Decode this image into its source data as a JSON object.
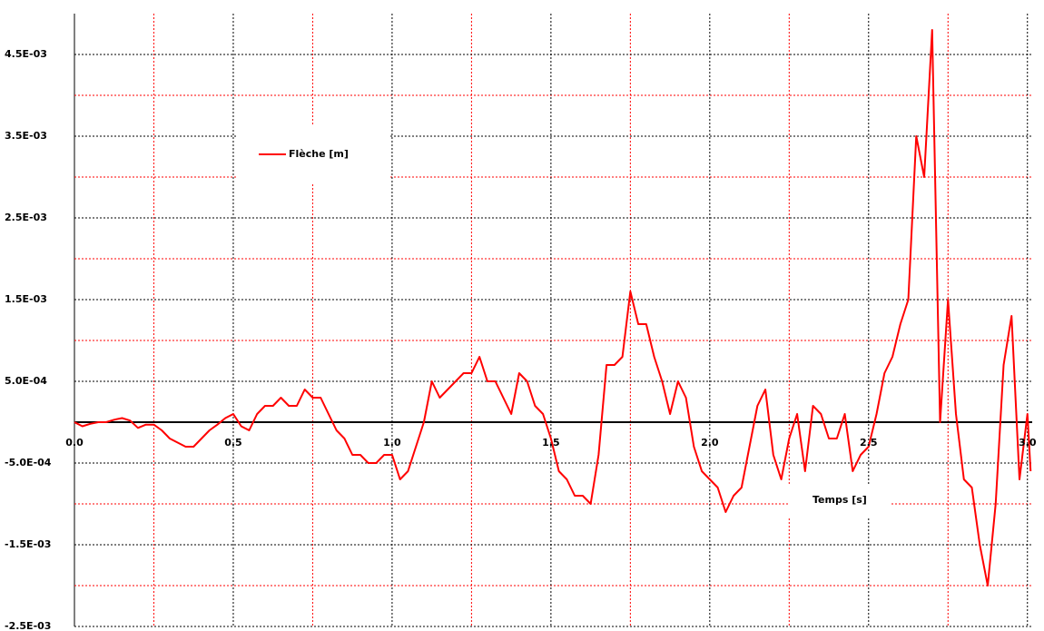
{
  "chart_data": {
    "type": "line",
    "x": [
      0,
      0.025,
      0.05,
      0.075,
      0.1,
      0.125,
      0.15,
      0.175,
      0.2,
      0.225,
      0.25,
      0.275,
      0.3,
      0.325,
      0.35,
      0.375,
      0.4,
      0.425,
      0.45,
      0.475,
      0.5,
      0.525,
      0.55,
      0.575,
      0.6,
      0.625,
      0.65,
      0.675,
      0.7,
      0.725,
      0.75,
      0.775,
      0.8,
      0.825,
      0.85,
      0.875,
      0.9,
      0.925,
      0.95,
      0.975,
      1,
      1.025,
      1.05,
      1.075,
      1.1,
      1.125,
      1.15,
      1.175,
      1.2,
      1.225,
      1.25,
      1.275,
      1.3,
      1.325,
      1.35,
      1.375,
      1.4,
      1.425,
      1.45,
      1.475,
      1.5,
      1.525,
      1.55,
      1.575,
      1.6,
      1.625,
      1.65,
      1.675,
      1.7,
      1.725,
      1.75,
      1.775,
      1.8,
      1.825,
      1.85,
      1.875,
      1.9,
      1.925,
      1.95,
      1.975,
      2,
      2.025,
      2.05,
      2.075,
      2.1,
      2.125,
      2.15,
      2.175,
      2.2,
      2.225,
      2.25,
      2.275,
      2.3,
      2.325,
      2.35,
      2.375,
      2.4,
      2.425,
      2.45,
      2.475,
      2.5,
      2.525,
      2.55,
      2.575,
      2.6,
      2.625,
      2.65,
      2.675,
      2.7,
      2.725,
      2.75,
      2.775,
      2.8,
      2.825,
      2.85,
      2.875,
      2.9,
      2.925,
      2.95,
      2.975,
      3,
      3.01
    ],
    "series": [
      {
        "name": "Flèche [m]",
        "color": "#ff0000",
        "values": [
          0,
          -5e-05,
          -2e-05,
          0,
          0,
          3e-05,
          5e-05,
          2e-05,
          -7e-05,
          -3e-05,
          -3e-05,
          -0.0001,
          -0.0002,
          -0.00025,
          -0.0003,
          -0.0003,
          -0.0002,
          -0.0001,
          -3e-05,
          5e-05,
          0.0001,
          -5e-05,
          -0.0001,
          0.0001,
          0.0002,
          0.0002,
          0.0003,
          0.0002,
          0.0002,
          0.0004,
          0.0003,
          0.0003,
          0.0001,
          -0.0001,
          -0.0002,
          -0.0004,
          -0.0004,
          -0.0005,
          -0.0005,
          -0.0004,
          -0.0004,
          -0.0007,
          -0.0006,
          -0.0003,
          0,
          0.0005,
          0.0003,
          0.0004,
          0.0005,
          0.0006,
          0.0006,
          0.0008,
          0.0005,
          0.0005,
          0.0003,
          0.0001,
          0.0006,
          0.0005,
          0.0002,
          0.0001,
          -0.0002,
          -0.0006,
          -0.0007,
          -0.0009,
          -0.0009,
          -0.001,
          -0.0004,
          0.0007,
          0.0007,
          0.0008,
          0.0016,
          0.0012,
          0.0012,
          0.0008,
          0.0005,
          0.0001,
          0.0005,
          0.0003,
          -0.0003,
          -0.0006,
          -0.0007,
          -0.0008,
          -0.0011,
          -0.0009,
          -0.0008,
          -0.0003,
          0.0002,
          0.0004,
          -0.0004,
          -0.0007,
          -0.0002,
          0.0001,
          -0.0006,
          0.0002,
          0.0001,
          -0.0002,
          -0.0002,
          0.0001,
          -0.0006,
          -0.0004,
          -0.0003,
          0.0001,
          0.0006,
          0.0008,
          0.0012,
          0.0015,
          0.0035,
          0.003,
          0.0048,
          0,
          0.0015,
          0.0001,
          -0.0007,
          -0.0008,
          -0.0015,
          -0.002,
          -0.001,
          0.0007,
          0.0013,
          -0.0007,
          0.0001,
          -0.0006
        ]
      }
    ],
    "x_label": "Temps [s]",
    "xlim": [
      0,
      3.015
    ],
    "ylim": [
      -0.0025,
      0.005
    ],
    "xticks": [
      {
        "value": 0,
        "label": "0.0"
      },
      0.5,
      {
        "value": 1,
        "label": "1.0"
      },
      1.5,
      {
        "value": 2,
        "label": "2.0"
      },
      2.5,
      {
        "value": 3,
        "label": "3.0"
      }
    ],
    "yticks": [
      {
        "value": 0.0045,
        "label": "4.5E-03"
      },
      {
        "value": 0.0035,
        "label": "3.5E-03"
      },
      {
        "value": 0.0025,
        "label": "2.5E-03"
      },
      {
        "value": 0.0015,
        "label": "1.5E-03"
      },
      {
        "value": 0.0005,
        "label": "5.0E-04"
      },
      {
        "value": -0.0005,
        "label": "-5.0E-04"
      },
      {
        "value": -0.0015,
        "label": "-1.5E-03"
      },
      {
        "value": -0.0025,
        "label": "-2.5E-03"
      }
    ],
    "minor_xticks": [
      0.25,
      0.75,
      1.25,
      1.75,
      2.25,
      2.75
    ],
    "minor_yticks": [
      0.004,
      0.003,
      0.002,
      0.001,
      -0.001,
      -0.002
    ],
    "grid": true
  }
}
